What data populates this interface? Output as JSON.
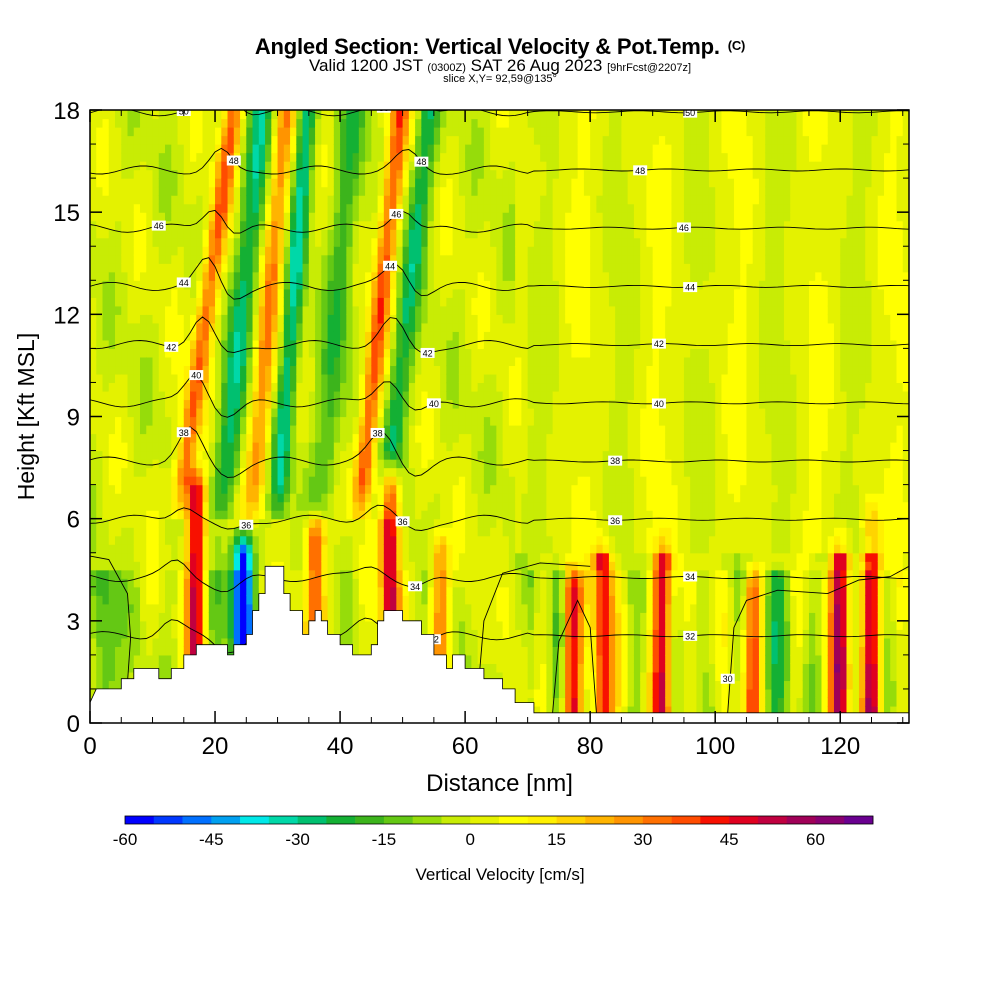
{
  "title": {
    "main": "Angled Section: Vertical Velocity & Pot.Temp.",
    "main_unit": "(C)",
    "valid_a": "Valid 1200 JST",
    "valid_b": "(0300Z)",
    "valid_c": "SAT 26 Aug 2023",
    "valid_d": "[9hrFcst@2207z]",
    "slice": "slice X,Y= 92,59@135°"
  },
  "chart_data": {
    "type": "heatmap",
    "xlabel": "Distance [nm]",
    "ylabel": "Height [Kft MSL]",
    "xlim": [
      0,
      131
    ],
    "ylim": [
      0,
      18
    ],
    "x_ticks": [
      0,
      20,
      40,
      60,
      80,
      100,
      120
    ],
    "y_ticks": [
      0,
      3,
      6,
      9,
      12,
      15,
      18
    ],
    "colorbar": {
      "label": "Vertical Velocity [cm/s]",
      "min": -60,
      "max": 70,
      "ticks": [
        -60,
        -45,
        -30,
        -15,
        0,
        15,
        30,
        45,
        60
      ],
      "colors": [
        "#0000ff",
        "#0038ff",
        "#0070ff",
        "#00a0f0",
        "#00e8e8",
        "#00d8a8",
        "#00c070",
        "#14b034",
        "#3cb41c",
        "#64c814",
        "#96dc0a",
        "#c8ec05",
        "#e4f200",
        "#ffff00",
        "#fff000",
        "#ffd400",
        "#ffb400",
        "#ff9400",
        "#ff7000",
        "#ff4c00",
        "#f81000",
        "#e00020",
        "#c00040",
        "#a00058",
        "#880070",
        "#6a0090"
      ]
    },
    "theta_contours": {
      "unit": "C",
      "levels": [
        30,
        32,
        34,
        36,
        38,
        40,
        42,
        44,
        46,
        48,
        50
      ]
    },
    "vertical_velocity_features": [
      {
        "x": 17,
        "z_top": 6.8,
        "peak": 50
      },
      {
        "x": 24.5,
        "z_top": 5.0,
        "peak": -60
      },
      {
        "x": 36,
        "z_top": 5.5,
        "peak": 40
      },
      {
        "x": 48,
        "z_top": 7.0,
        "peak": 55
      },
      {
        "x": 56,
        "z_top": 5.0,
        "peak": 30
      },
      {
        "x": 77,
        "z_top": 4.0,
        "peak": 50
      },
      {
        "x": 82,
        "z_top": 5.0,
        "peak": 50
      },
      {
        "x": 91.5,
        "z_top": 5.0,
        "peak": 50
      },
      {
        "x": 106,
        "z_top": 4.0,
        "peak": 35
      },
      {
        "x": 120,
        "z_top": 5.0,
        "peak": 55
      },
      {
        "x": 125,
        "z_top": 6.0,
        "peak": 50
      }
    ],
    "terrain": [
      [
        0,
        0.6
      ],
      [
        1,
        1.0
      ],
      [
        5,
        1.0
      ],
      [
        5,
        1.3
      ],
      [
        7,
        1.3
      ],
      [
        7,
        1.6
      ],
      [
        11,
        1.6
      ],
      [
        11,
        1.3
      ],
      [
        13,
        1.3
      ],
      [
        13,
        1.6
      ],
      [
        15,
        1.6
      ],
      [
        15,
        2.0
      ],
      [
        17,
        2.0
      ],
      [
        17,
        2.3
      ],
      [
        22,
        2.3
      ],
      [
        22,
        2.0
      ],
      [
        23,
        2.0
      ],
      [
        23,
        2.3
      ],
      [
        25,
        2.3
      ],
      [
        25,
        2.6
      ],
      [
        26,
        2.6
      ],
      [
        26,
        3.3
      ],
      [
        27,
        3.3
      ],
      [
        27,
        3.8
      ],
      [
        28,
        3.8
      ],
      [
        28,
        4.6
      ],
      [
        31,
        4.6
      ],
      [
        31,
        3.8
      ],
      [
        32,
        3.8
      ],
      [
        32,
        3.3
      ],
      [
        34,
        3.3
      ],
      [
        34,
        2.6
      ],
      [
        35,
        2.6
      ],
      [
        35,
        3.0
      ],
      [
        36,
        3.0
      ],
      [
        36,
        3.3
      ],
      [
        37,
        3.3
      ],
      [
        37,
        3.0
      ],
      [
        38,
        3.0
      ],
      [
        38,
        2.6
      ],
      [
        40,
        2.6
      ],
      [
        40,
        2.3
      ],
      [
        42,
        2.3
      ],
      [
        42,
        2.0
      ],
      [
        45,
        2.0
      ],
      [
        45,
        2.3
      ],
      [
        46,
        2.3
      ],
      [
        46,
        3.0
      ],
      [
        47,
        3.0
      ],
      [
        47,
        3.3
      ],
      [
        50,
        3.3
      ],
      [
        50,
        3.0
      ],
      [
        53,
        3.0
      ],
      [
        53,
        2.6
      ],
      [
        55,
        2.6
      ],
      [
        55,
        2.0
      ],
      [
        57,
        2.0
      ],
      [
        57,
        1.6
      ],
      [
        58,
        1.6
      ],
      [
        58,
        2.0
      ],
      [
        60,
        2.0
      ],
      [
        60,
        1.6
      ],
      [
        63,
        1.6
      ],
      [
        63,
        1.3
      ],
      [
        66,
        1.3
      ],
      [
        66,
        1.0
      ],
      [
        68,
        1.0
      ],
      [
        68,
        0.6
      ],
      [
        71,
        0.6
      ],
      [
        71,
        0.3
      ],
      [
        131,
        0.3
      ]
    ]
  }
}
